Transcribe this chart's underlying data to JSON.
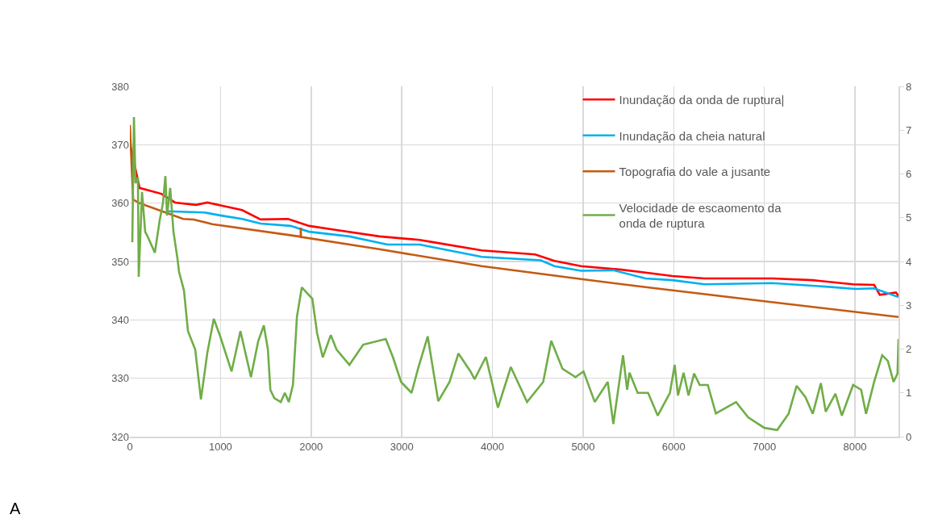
{
  "chart_data": {
    "type": "line",
    "xlim": [
      0,
      8480
    ],
    "xticks": [
      0,
      1000,
      2000,
      3000,
      4000,
      5000,
      6000,
      7000,
      8000
    ],
    "ylim": [
      320,
      380
    ],
    "yticks": [
      320,
      330,
      340,
      350,
      360,
      370,
      380
    ],
    "y2lim": [
      0,
      8
    ],
    "y2ticks": [
      0,
      1,
      2,
      3,
      4,
      5,
      6,
      7,
      8
    ],
    "grid": true,
    "legend": "top right",
    "annotations": [
      "A"
    ],
    "series": [
      {
        "name": "Inundação da onda de ruptura|",
        "color": "#ff0000",
        "x": [
          0,
          107,
          347,
          499,
          730,
          855,
          1033,
          1238,
          1443,
          1745,
          1977,
          2280,
          2752,
          3197,
          3348,
          3883,
          4471,
          4684,
          4978,
          5423,
          5690,
          5985,
          6341,
          7089,
          7534,
          7979,
          8211,
          8273,
          8451,
          8480
        ],
        "values": [
          370.3,
          362.6,
          361.6,
          360.1,
          359.7,
          360.1,
          359.5,
          358.8,
          357.2,
          357.3,
          356.1,
          355.4,
          354.3,
          353.7,
          353.3,
          351.9,
          351.2,
          350.1,
          349.2,
          348.6,
          348.1,
          347.5,
          347.1,
          347.1,
          346.8,
          346.1,
          346.0,
          344.3,
          344.7,
          344.1
        ]
      },
      {
        "name": "Inundação da cheia natural",
        "color": "#00b0f0",
        "x": [
          410,
          819,
          997,
          1238,
          1443,
          1772,
          1977,
          2422,
          2841,
          3197,
          3883,
          4533,
          4684,
          4978,
          5334,
          5690,
          5985,
          6341,
          7089,
          7677,
          8007,
          8211,
          8480
        ],
        "values": [
          358.6,
          358.4,
          357.9,
          357.3,
          356.5,
          356.1,
          355.1,
          354.3,
          352.9,
          352.9,
          350.8,
          350.2,
          349.2,
          348.4,
          348.5,
          347.1,
          346.8,
          346.1,
          346.3,
          345.7,
          345.3,
          345.4,
          343.9
        ]
      },
      {
        "name": "Topografia do vale a jusante",
        "color": "#c55a11",
        "x": [
          0,
          36,
          107,
          588,
          704,
          909,
          1861,
          1884,
          1886,
          1888,
          2752,
          3883,
          4978,
          5690,
          7000,
          8480
        ],
        "values": [
          373.4,
          360.6,
          360.0,
          357.3,
          357.2,
          356.4,
          354.3,
          354.2,
          355.8,
          354.2,
          352.1,
          349.2,
          347.0,
          345.6,
          343.2,
          340.5
        ]
      },
      {
        "name": "Velocidade de escaomento da onda de ruptura",
        "color": "#70ad47",
        "axis": "y2",
        "x": [
          27,
          45,
          62,
          89,
          98,
          134,
          169,
          196,
          276,
          329,
          365,
          392,
          410,
          445,
          481,
          525,
          543,
          597,
          641,
          721,
          784,
          855,
          926,
          997,
          1122,
          1220,
          1336,
          1416,
          1478,
          1523,
          1550,
          1594,
          1665,
          1710,
          1754,
          1799,
          1843,
          1897,
          2013,
          2066,
          2128,
          2217,
          2280,
          2422,
          2574,
          2823,
          2903,
          2992,
          3108,
          3179,
          3286,
          3402,
          3527,
          3625,
          3758,
          3803,
          3928,
          4061,
          4203,
          4382,
          4560,
          4649,
          4773,
          4916,
          5005,
          5129,
          5272,
          5334,
          5441,
          5486,
          5512,
          5602,
          5717,
          5824,
          5958,
          6011,
          6047,
          6109,
          6163,
          6225,
          6287,
          6376,
          6465,
          6688,
          6821,
          7000,
          7142,
          7267,
          7356,
          7454,
          7534,
          7623,
          7677,
          7784,
          7855,
          7979,
          8068,
          8122,
          8211,
          8300,
          8362,
          8425,
          8469,
          8480
        ],
        "values": [
          4.44,
          7.3,
          5.79,
          5.92,
          3.65,
          5.59,
          4.68,
          4.57,
          4.2,
          4.94,
          5.33,
          5.95,
          5.05,
          5.68,
          4.68,
          4.07,
          3.76,
          3.34,
          2.41,
          1.99,
          0.85,
          1.92,
          2.69,
          2.29,
          1.49,
          2.41,
          1.36,
          2.18,
          2.54,
          1.99,
          1.07,
          0.88,
          0.79,
          1.0,
          0.79,
          1.18,
          2.73,
          3.41,
          3.15,
          2.36,
          1.81,
          2.32,
          1.99,
          1.64,
          2.1,
          2.23,
          1.81,
          1.25,
          1.0,
          1.55,
          2.29,
          0.81,
          1.25,
          1.9,
          1.49,
          1.31,
          1.82,
          0.66,
          1.59,
          0.79,
          1.25,
          2.19,
          1.55,
          1.36,
          1.49,
          0.79,
          1.25,
          0.29,
          1.86,
          1.07,
          1.46,
          1.0,
          1.0,
          0.48,
          1.0,
          1.64,
          0.94,
          1.46,
          0.94,
          1.44,
          1.18,
          1.18,
          0.53,
          0.79,
          0.44,
          0.2,
          0.15,
          0.52,
          1.16,
          0.9,
          0.52,
          1.22,
          0.57,
          0.98,
          0.48,
          1.18,
          1.07,
          0.52,
          1.25,
          1.86,
          1.73,
          1.25,
          1.44,
          2.23
        ]
      }
    ]
  }
}
